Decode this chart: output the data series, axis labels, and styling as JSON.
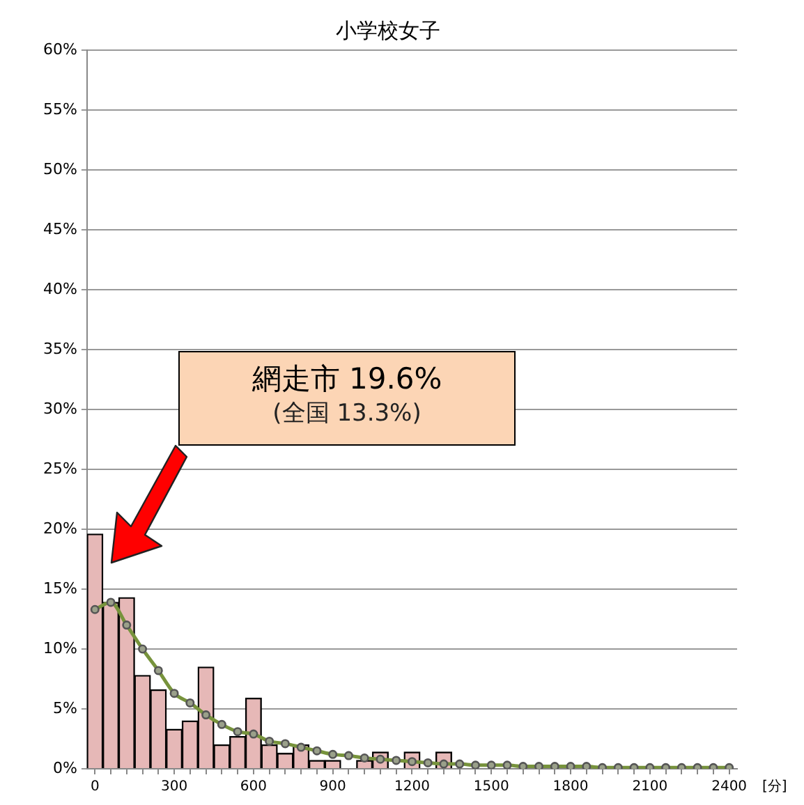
{
  "chart_data": {
    "type": "bar",
    "title": "小学校女子",
    "xlabel": "[分]",
    "categories": [
      "0",
      null,
      null,
      null,
      null,
      "300",
      null,
      null,
      null,
      null,
      "600",
      null,
      null,
      null,
      null,
      "900",
      null,
      null,
      null,
      null,
      "1200",
      null,
      null,
      null,
      null,
      "1500",
      null,
      null,
      null,
      null,
      "1800",
      null,
      null,
      null,
      null,
      "2100",
      null,
      null,
      null,
      null,
      "2400"
    ],
    "series": [
      {
        "color": "#e6b8b7",
        "values": [
          19.6,
          13.9,
          14.3,
          7.8,
          6.6,
          3.3,
          4.0,
          8.5,
          2.0,
          2.7,
          5.9,
          2.0,
          1.3,
          2.0,
          0.7,
          0.7,
          0,
          0.7,
          1.4,
          0,
          1.4,
          0,
          1.4,
          0,
          0,
          0,
          0,
          0,
          0,
          0,
          0,
          0,
          0,
          0,
          0,
          0,
          0,
          0,
          0,
          0,
          0
        ]
      },
      {
        "type": "line",
        "color": "#77933c",
        "marker": "circle",
        "values": [
          13.3,
          13.9,
          12.0,
          10.0,
          8.2,
          6.3,
          5.5,
          4.5,
          3.7,
          3.1,
          2.9,
          2.3,
          2.1,
          1.8,
          1.5,
          1.2,
          1.1,
          0.9,
          0.8,
          0.7,
          0.6,
          0.5,
          0.4,
          0.4,
          0.3,
          0.3,
          0.3,
          0.2,
          0.2,
          0.2,
          0.2,
          0.2,
          0.1,
          0.1,
          0.1,
          0.1,
          0.1,
          0.1,
          0.1,
          0.1,
          0.1
        ]
      }
    ],
    "ylim": [
      0,
      60
    ],
    "yticks": [
      {
        "value": 0,
        "label": "0%"
      },
      {
        "value": 5,
        "label": "5%"
      },
      {
        "value": 10,
        "label": "10%"
      },
      {
        "value": 15,
        "label": "15%"
      },
      {
        "value": 20,
        "label": "20%"
      },
      {
        "value": 25,
        "label": "25%"
      },
      {
        "value": 30,
        "label": "30%"
      },
      {
        "value": 35,
        "label": "35%"
      },
      {
        "value": 40,
        "label": "40%"
      },
      {
        "value": 45,
        "label": "45%"
      },
      {
        "value": 50,
        "label": "50%"
      },
      {
        "value": 55,
        "label": "55%"
      },
      {
        "value": 60,
        "label": "60%"
      }
    ],
    "grid": "y",
    "annotations": [
      "網走市 19.6%",
      "(全国 13.3%)"
    ]
  }
}
